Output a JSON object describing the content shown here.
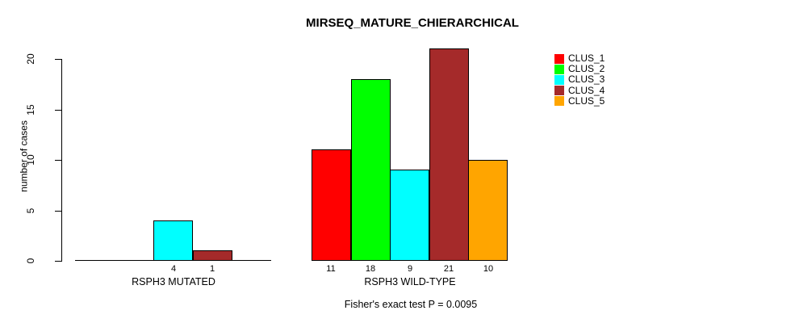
{
  "chart_data": {
    "type": "bar",
    "title": "MIRSEQ_MATURE_CHIERARCHICAL",
    "xlabel": "",
    "ylabel": "number of cases",
    "ylim": [
      0,
      21.5
    ],
    "yticks": [
      "0",
      "5",
      "10",
      "15",
      "20"
    ],
    "ytick_values": [
      0,
      5,
      10,
      15,
      20
    ],
    "grid": false,
    "legend_position": "right-outside",
    "categories": [
      "RSPH3 MUTATED",
      "RSPH3 WILD-TYPE"
    ],
    "series": [
      {
        "name": "CLUS_1",
        "color": "#FF0000",
        "values": [
          0,
          11
        ]
      },
      {
        "name": "CLUS_2",
        "color": "#00FF00",
        "values": [
          0,
          18
        ]
      },
      {
        "name": "CLUS_3",
        "color": "#00FFFF",
        "values": [
          4,
          9
        ]
      },
      {
        "name": "CLUS_4",
        "color": "#A52A2A",
        "values": [
          1,
          21
        ]
      },
      {
        "name": "CLUS_5",
        "color": "#FFA500",
        "values": [
          0,
          10
        ]
      }
    ],
    "bar_value_labels_rule": "value shown under each bar when value > 0",
    "annotation": "Fisher's exact test P = 0.0095"
  }
}
